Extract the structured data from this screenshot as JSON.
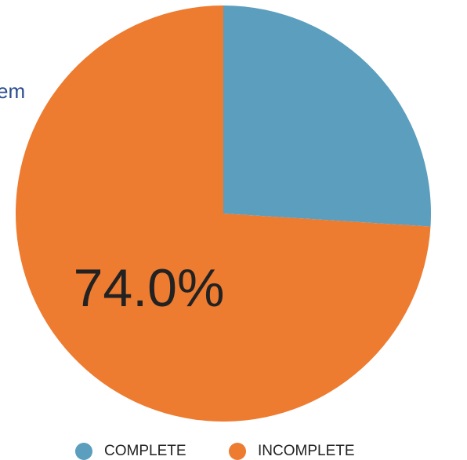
{
  "chart_data": {
    "type": "pie",
    "annotation": "em",
    "categories": [
      "COMPLETE",
      "INCOMPLETE"
    ],
    "values": [
      26,
      74
    ],
    "value_labels": [
      null,
      "74.0%"
    ],
    "colors": [
      "#5b9ebe",
      "#ed7b30"
    ],
    "legend": "bottom"
  }
}
